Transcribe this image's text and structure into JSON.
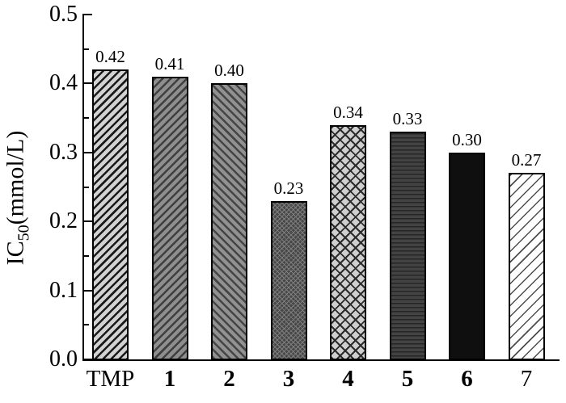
{
  "chart_data": {
    "type": "bar",
    "title": "",
    "ylabel_prefix": "IC",
    "ylabel_sub": "50",
    "ylabel_suffix": "(mmol/L)",
    "xlabel": "",
    "categories": [
      "TMP",
      "1",
      "2",
      "3",
      "4",
      "5",
      "6",
      "7"
    ],
    "category_bold": [
      false,
      true,
      true,
      true,
      true,
      true,
      true,
      false
    ],
    "values": [
      0.42,
      0.41,
      0.4,
      0.23,
      0.34,
      0.33,
      0.3,
      0.27
    ],
    "value_labels": [
      "0.42",
      "0.41",
      "0.40",
      "0.23",
      "0.34",
      "0.33",
      "0.30",
      "0.27"
    ],
    "ylim": [
      0.0,
      0.5
    ],
    "ytick_labels": [
      "0.0",
      "0.1",
      "0.2",
      "0.3",
      "0.4",
      "0.5"
    ],
    "ytick_major_step": 0.1,
    "ytick_minor_step": 0.05,
    "grid": false,
    "legend_position": "none",
    "frame": "left-bottom-only",
    "bar_border_color": "#000000",
    "bar_styles": [
      {
        "pattern": "diagonal-forward",
        "bg": "#d2d2d2",
        "line": "#1a1a1a"
      },
      {
        "pattern": "diagonal-forward",
        "bg": "#8e8e8e",
        "line": "#3f3f3f"
      },
      {
        "pattern": "diagonal-back",
        "bg": "#919191",
        "line": "#454545"
      },
      {
        "pattern": "crosshatch-fine",
        "bg": "#474747",
        "line": "#7d7d7d"
      },
      {
        "pattern": "crosshatch-diamond",
        "bg": "#cfcfcf",
        "line": "#2b2b2b"
      },
      {
        "pattern": "horizontal-lines",
        "bg": "#434343",
        "line": "#262626"
      },
      {
        "pattern": "solid",
        "bg": "#0f0f0f",
        "line": "#0f0f0f"
      },
      {
        "pattern": "diagonal-forward-sparse",
        "bg": "#ffffff",
        "line": "#4d4d4d"
      }
    ]
  }
}
